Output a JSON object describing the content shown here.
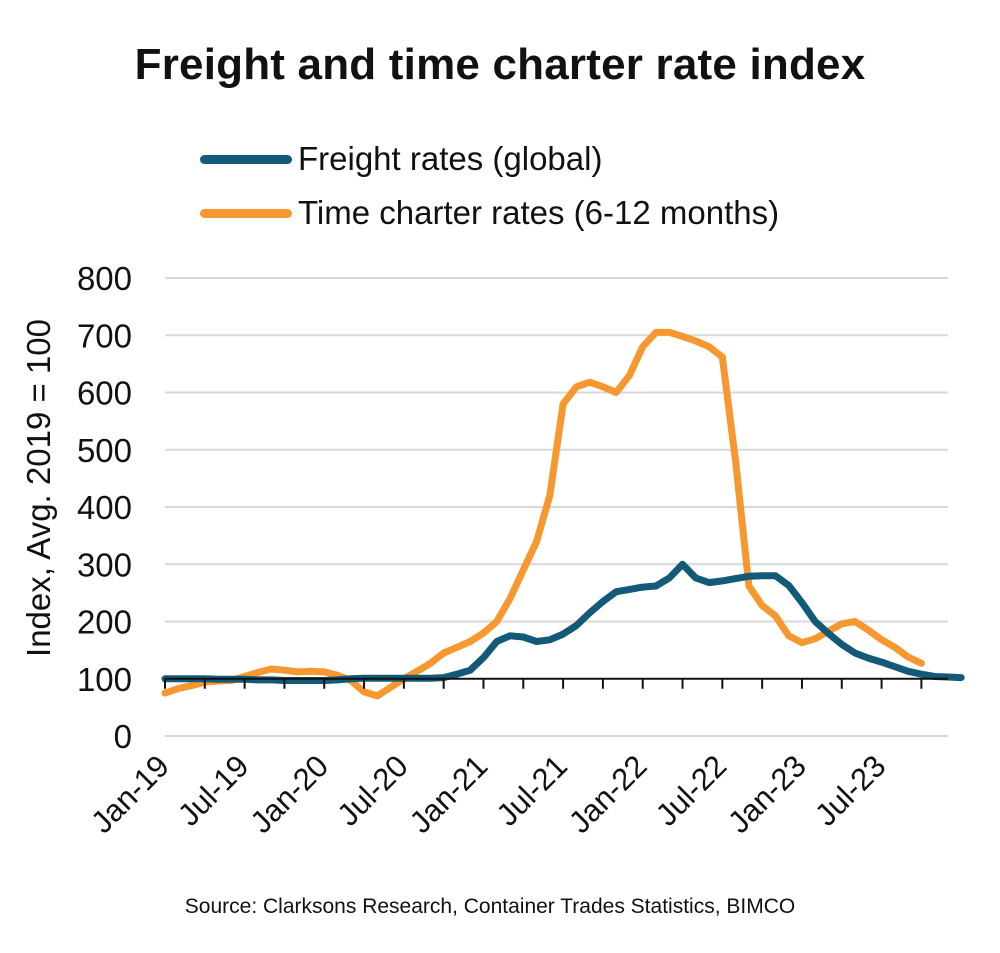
{
  "chart_data": {
    "type": "line",
    "title": "Freight and time charter rate index",
    "ylabel": "Index, Avg. 2019 = 100",
    "xlabel": "",
    "ylim": [
      0,
      800
    ],
    "yticks": [
      0,
      100,
      200,
      300,
      400,
      500,
      600,
      700,
      800
    ],
    "xticks": [
      "Jan-19",
      "Jul-19",
      "Jan-20",
      "Jul-20",
      "Jan-21",
      "Jul-21",
      "Jan-22",
      "Jul-22",
      "Jan-23",
      "Jul-23"
    ],
    "x_start": "Jan-19",
    "grid": true,
    "legend_position": "top",
    "source": "Source: Clarksons Research, Container Trades Statistics, BIMCO",
    "series": [
      {
        "name": "Freight rates (global)",
        "color": "#135a78",
        "values": [
          100,
          100,
          100,
          100,
          99,
          99,
          99,
          98,
          98,
          97,
          97,
          97,
          97,
          98,
          100,
          101,
          101,
          101,
          101,
          101,
          101,
          102,
          108,
          115,
          137,
          165,
          175,
          173,
          165,
          168,
          178,
          193,
          215,
          235,
          252,
          256,
          260,
          262,
          276,
          300,
          276,
          268,
          271,
          275,
          279,
          280,
          280,
          263,
          233,
          200,
          179,
          160,
          145,
          136,
          129,
          121,
          113,
          108,
          104,
          103,
          102
        ]
      },
      {
        "name": "Time charter rates (6-12 months)",
        "color": "#f79730",
        "values": [
          75,
          83,
          88,
          94,
          96,
          97,
          104,
          111,
          117,
          115,
          112,
          113,
          112,
          106,
          97,
          77,
          70,
          85,
          100,
          113,
          127,
          145,
          155,
          165,
          180,
          200,
          240,
          290,
          340,
          420,
          580,
          610,
          618,
          610,
          600,
          630,
          680,
          705,
          705,
          698,
          690,
          680,
          662,
          480,
          262,
          228,
          210,
          175,
          163,
          170,
          183,
          196,
          200,
          185,
          168,
          155,
          138,
          127
        ]
      }
    ]
  }
}
